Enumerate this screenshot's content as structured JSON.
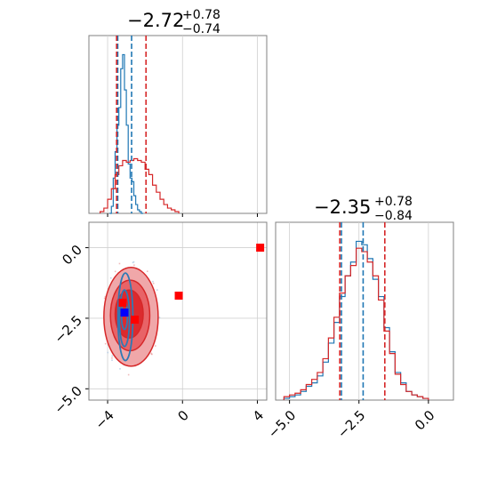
{
  "chart_data": [
    {
      "type": "histogram",
      "panel": "top-left",
      "title_value": "−2.72",
      "title_plus": "+0.78",
      "title_minus": "−0.74",
      "xlim": [
        -5,
        4.5
      ],
      "xticks": [
        -4,
        0,
        4
      ],
      "grid": true,
      "series": [
        {
          "color": "#1f77b4",
          "bin_edges": [
            -3.9,
            -3.8,
            -3.7,
            -3.6,
            -3.5,
            -3.4,
            -3.3,
            -3.2,
            -3.1,
            -3.0,
            -2.9,
            -2.8,
            -2.7,
            -2.6,
            -2.5,
            -2.4,
            -2.3,
            -2.2,
            -2.1
          ],
          "counts": [
            0,
            0.04,
            0.2,
            0.35,
            0.5,
            0.6,
            0.82,
            0.9,
            0.7,
            0.5,
            0.28,
            0.2,
            0.18,
            0.1,
            0.05,
            0.02,
            0.01,
            0
          ]
        },
        {
          "color": "#d62728",
          "bin_edges": [
            -4.4,
            -4.2,
            -4.0,
            -3.8,
            -3.6,
            -3.4,
            -3.2,
            -3.0,
            -2.8,
            -2.6,
            -2.4,
            -2.2,
            -2.0,
            -1.8,
            -1.6,
            -1.4,
            -1.2,
            -1.0,
            -0.8,
            -0.6,
            -0.4,
            -0.2
          ],
          "counts": [
            0.01,
            0.03,
            0.08,
            0.14,
            0.22,
            0.27,
            0.3,
            0.29,
            0.3,
            0.31,
            0.3,
            0.29,
            0.25,
            0.22,
            0.16,
            0.12,
            0.08,
            0.05,
            0.03,
            0.02,
            0.01
          ]
        }
      ],
      "vlines": [
        {
          "x": -3.46,
          "color": "#1f77b4"
        },
        {
          "x": -2.72,
          "color": "#1f77b4"
        },
        {
          "x": -3.52,
          "color": "#d62728"
        },
        {
          "x": -1.95,
          "color": "#d62728"
        }
      ]
    },
    {
      "type": "contour",
      "panel": "bottom-left",
      "xlim": [
        -5,
        4.5
      ],
      "ylim": [
        -5.4,
        0.9
      ],
      "xticks": [
        -4,
        0,
        4
      ],
      "yticks": [
        0.0,
        -2.5,
        -5.0
      ],
      "x_ticklabels": [
        "−4",
        "0",
        "4"
      ],
      "y_ticklabels": [
        "0.0",
        "−2.5",
        "−5.0"
      ],
      "grid": true,
      "red_contours": [
        {
          "cx": -2.75,
          "cy": -2.45,
          "rx": 1.45,
          "ry": 1.75,
          "level": "outer"
        },
        {
          "cx": -2.8,
          "cy": -2.4,
          "rx": 1.05,
          "ry": 1.25,
          "level": "middle"
        },
        {
          "cx": -2.85,
          "cy": -2.35,
          "rx": 0.75,
          "ry": 0.85,
          "level": "inner"
        }
      ],
      "blue_contours": [
        {
          "cx": -3.05,
          "cy": -2.45,
          "rx": 0.4,
          "ry": 1.55
        },
        {
          "cx": -3.1,
          "cy": -2.5,
          "rx": 0.27,
          "ry": 1.0
        },
        {
          "cx": -3.1,
          "cy": -2.4,
          "rx": 0.16,
          "ry": 0.5
        }
      ],
      "red_markers": [
        {
          "x": 4.15,
          "y": 0.0
        },
        {
          "x": -0.2,
          "y": -1.7
        },
        {
          "x": -3.2,
          "y": -1.95
        },
        {
          "x": -2.55,
          "y": -2.55
        }
      ],
      "blue_markers": [
        {
          "x": -3.1,
          "y": -2.3
        }
      ]
    },
    {
      "type": "histogram",
      "panel": "bottom-right",
      "title_value": "−2.35",
      "title_plus": "+0.78",
      "title_minus": "−0.84",
      "xlim": [
        -5.5,
        0.9
      ],
      "xticks": [
        -5.0,
        -2.5,
        0.0
      ],
      "x_ticklabels": [
        "−5.0",
        "−2.5",
        "0.0"
      ],
      "grid": true,
      "series": [
        {
          "color": "#1f77b4",
          "bin_edges": [
            -5.2,
            -5.0,
            -4.8,
            -4.6,
            -4.4,
            -4.2,
            -4.0,
            -3.8,
            -3.6,
            -3.4,
            -3.2,
            -3.0,
            -2.8,
            -2.6,
            -2.4,
            -2.2,
            -2.0,
            -1.8,
            -1.6,
            -1.4,
            -1.2,
            -1.0,
            -0.8,
            -0.6,
            -0.4,
            -0.2,
            0.0
          ],
          "counts": [
            0.01,
            0.02,
            0.03,
            0.05,
            0.08,
            0.1,
            0.14,
            0.22,
            0.33,
            0.45,
            0.6,
            0.72,
            0.8,
            0.92,
            0.9,
            0.82,
            0.7,
            0.6,
            0.42,
            0.28,
            0.16,
            0.1,
            0.05,
            0.03,
            0.02,
            0.01
          ]
        },
        {
          "color": "#d62728",
          "bin_edges": [
            -5.2,
            -5.0,
            -4.8,
            -4.6,
            -4.4,
            -4.2,
            -4.0,
            -3.8,
            -3.6,
            -3.4,
            -3.2,
            -3.0,
            -2.8,
            -2.6,
            -2.4,
            -2.2,
            -2.0,
            -1.8,
            -1.6,
            -1.4,
            -1.2,
            -1.0,
            -0.8,
            -0.6,
            -0.4,
            -0.2,
            0.0
          ],
          "counts": [
            0.02,
            0.03,
            0.04,
            0.06,
            0.09,
            0.12,
            0.16,
            0.24,
            0.36,
            0.48,
            0.62,
            0.72,
            0.78,
            0.88,
            0.86,
            0.8,
            0.72,
            0.58,
            0.4,
            0.27,
            0.15,
            0.09,
            0.05,
            0.03,
            0.02,
            0.01
          ]
        }
      ],
      "vlines": [
        {
          "x": -3.13,
          "color": "#1f77b4"
        },
        {
          "x": -2.35,
          "color": "#1f77b4"
        },
        {
          "x": -3.19,
          "color": "#d62728"
        },
        {
          "x": -1.57,
          "color": "#d62728"
        }
      ]
    }
  ]
}
